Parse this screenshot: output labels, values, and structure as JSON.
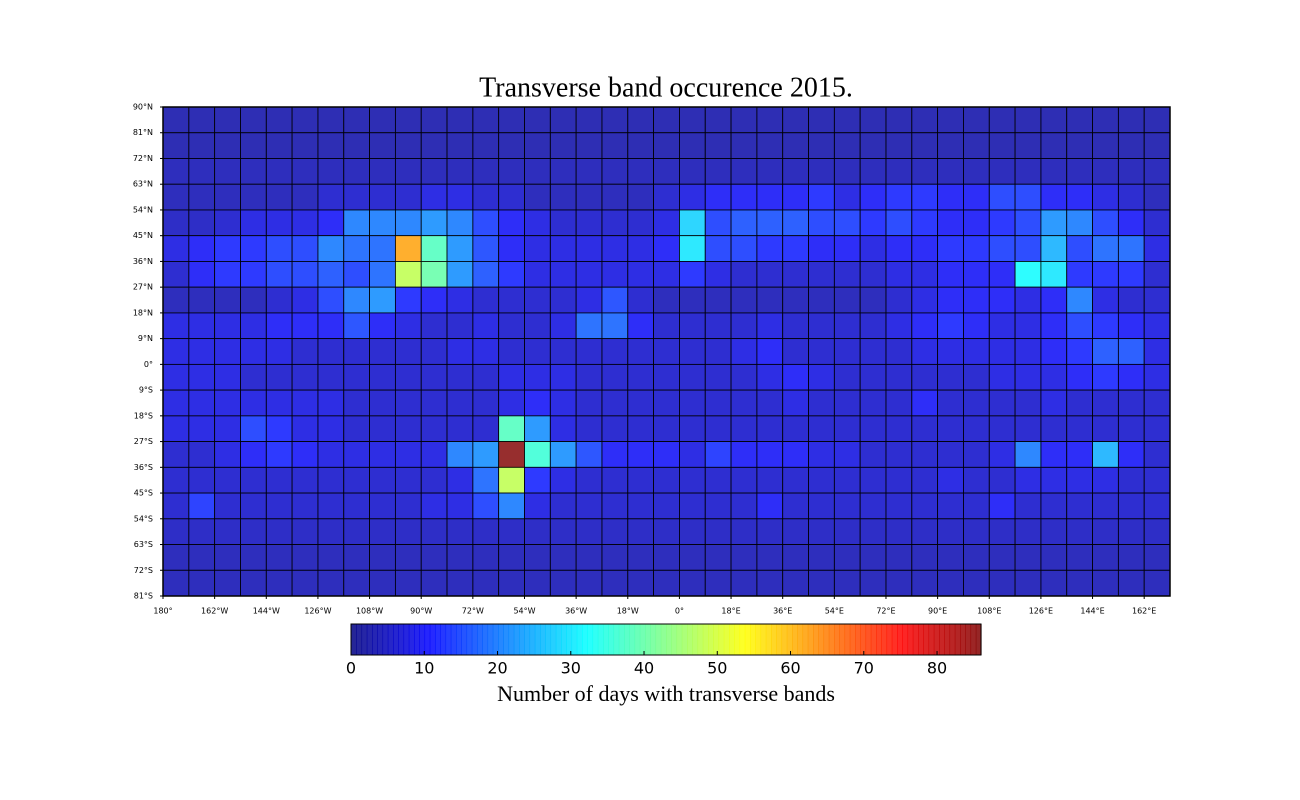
{
  "chart_data": {
    "type": "heatmap",
    "title": "Transverse band occurence 2015.",
    "colormap": "jet",
    "grid": true,
    "xlim": [
      -180,
      171
    ],
    "ylim": [
      -81,
      90
    ],
    "xticks": [
      {
        "value": -180,
        "label": "180°"
      },
      {
        "value": -162,
        "label": "162°W"
      },
      {
        "value": -144,
        "label": "144°W"
      },
      {
        "value": -126,
        "label": "126°W"
      },
      {
        "value": -108,
        "label": "108°W"
      },
      {
        "value": -90,
        "label": "90°W"
      },
      {
        "value": -72,
        "label": "72°W"
      },
      {
        "value": -54,
        "label": "54°W"
      },
      {
        "value": -36,
        "label": "36°W"
      },
      {
        "value": -18,
        "label": "18°W"
      },
      {
        "value": 0,
        "label": "0°"
      },
      {
        "value": 18,
        "label": "18°E"
      },
      {
        "value": 36,
        "label": "36°E"
      },
      {
        "value": 54,
        "label": "54°E"
      },
      {
        "value": 72,
        "label": "72°E"
      },
      {
        "value": 90,
        "label": "90°E"
      },
      {
        "value": 108,
        "label": "108°E"
      },
      {
        "value": 126,
        "label": "126°E"
      },
      {
        "value": 144,
        "label": "144°E"
      },
      {
        "value": 162,
        "label": "162°E"
      }
    ],
    "yticks": [
      {
        "value": 90,
        "label": "90°N"
      },
      {
        "value": 81,
        "label": "81°N"
      },
      {
        "value": 72,
        "label": "72°N"
      },
      {
        "value": 63,
        "label": "63°N"
      },
      {
        "value": 54,
        "label": "54°N"
      },
      {
        "value": 45,
        "label": "45°N"
      },
      {
        "value": 36,
        "label": "36°N"
      },
      {
        "value": 27,
        "label": "27°N"
      },
      {
        "value": 18,
        "label": "18°N"
      },
      {
        "value": 9,
        "label": "9°N"
      },
      {
        "value": 0,
        "label": "0°"
      },
      {
        "value": -9,
        "label": "9°S"
      },
      {
        "value": -18,
        "label": "18°S"
      },
      {
        "value": -27,
        "label": "27°S"
      },
      {
        "value": -36,
        "label": "36°S"
      },
      {
        "value": -45,
        "label": "45°S"
      },
      {
        "value": -54,
        "label": "54°S"
      },
      {
        "value": -63,
        "label": "63°S"
      },
      {
        "value": -72,
        "label": "72°S"
      },
      {
        "value": -81,
        "label": "81°S"
      }
    ],
    "colorbar": {
      "label": "Number of days with transverse bands",
      "clim": [
        0,
        86
      ],
      "ticks": [
        0,
        10,
        20,
        30,
        40,
        50,
        60,
        70,
        80
      ]
    },
    "values": [
      [
        3,
        3,
        3,
        3,
        3,
        3,
        3,
        3,
        3,
        3,
        3,
        3,
        3,
        3,
        3,
        3,
        3,
        3,
        3,
        3,
        3,
        3,
        3,
        3,
        3,
        3,
        3,
        3,
        3,
        3,
        3,
        3,
        3,
        3,
        3,
        3,
        3,
        3,
        3
      ],
      [
        3,
        3,
        3,
        3,
        3,
        3,
        3,
        3,
        3,
        3,
        3,
        3,
        3,
        3,
        3,
        3,
        3,
        3,
        3,
        3,
        3,
        3,
        3,
        3,
        3,
        3,
        3,
        3,
        3,
        3,
        3,
        3,
        3,
        3,
        3,
        3,
        3,
        3,
        3
      ],
      [
        4,
        4,
        4,
        4,
        4,
        4,
        4,
        4,
        4,
        4,
        4,
        4,
        4,
        4,
        4,
        4,
        4,
        4,
        4,
        4,
        4,
        4,
        4,
        4,
        4,
        4,
        4,
        4,
        4,
        4,
        4,
        4,
        4,
        4,
        4,
        4,
        4,
        4,
        4
      ],
      [
        4,
        4,
        4,
        4,
        4,
        4,
        6,
        6,
        6,
        6,
        8,
        8,
        6,
        6,
        4,
        4,
        4,
        4,
        4,
        6,
        8,
        10,
        10,
        10,
        10,
        12,
        8,
        10,
        12,
        12,
        10,
        10,
        14,
        14,
        10,
        10,
        8,
        6,
        4
      ],
      [
        5,
        5,
        6,
        8,
        8,
        8,
        10,
        20,
        20,
        20,
        22,
        20,
        14,
        10,
        8,
        6,
        6,
        6,
        6,
        8,
        28,
        14,
        16,
        16,
        16,
        14,
        14,
        12,
        14,
        12,
        10,
        10,
        12,
        14,
        22,
        20,
        14,
        10,
        6
      ],
      [
        8,
        10,
        12,
        12,
        14,
        14,
        20,
        18,
        18,
        62,
        38,
        22,
        15,
        10,
        8,
        8,
        8,
        8,
        8,
        10,
        30,
        14,
        14,
        12,
        12,
        10,
        10,
        8,
        10,
        10,
        12,
        12,
        14,
        14,
        25,
        14,
        18,
        18,
        8
      ],
      [
        6,
        10,
        12,
        12,
        14,
        14,
        16,
        14,
        18,
        48,
        40,
        22,
        16,
        12,
        8,
        8,
        8,
        8,
        8,
        8,
        12,
        8,
        6,
        6,
        6,
        6,
        6,
        6,
        8,
        8,
        10,
        10,
        10,
        32,
        30,
        12,
        12,
        12,
        6
      ],
      [
        4,
        4,
        4,
        4,
        6,
        8,
        14,
        20,
        22,
        12,
        10,
        8,
        6,
        6,
        6,
        6,
        8,
        15,
        6,
        4,
        4,
        4,
        4,
        4,
        4,
        4,
        4,
        4,
        6,
        8,
        10,
        10,
        10,
        8,
        10,
        20,
        8,
        6,
        6
      ],
      [
        8,
        8,
        8,
        8,
        10,
        10,
        10,
        15,
        10,
        8,
        6,
        6,
        8,
        6,
        6,
        8,
        18,
        18,
        10,
        6,
        6,
        6,
        6,
        8,
        6,
        6,
        6,
        6,
        8,
        10,
        12,
        10,
        8,
        8,
        10,
        14,
        12,
        10,
        8
      ],
      [
        8,
        8,
        8,
        8,
        8,
        6,
        6,
        6,
        6,
        6,
        6,
        8,
        8,
        6,
        6,
        6,
        6,
        6,
        6,
        6,
        6,
        6,
        8,
        10,
        6,
        6,
        6,
        6,
        6,
        8,
        8,
        8,
        8,
        8,
        10,
        12,
        16,
        16,
        8
      ],
      [
        8,
        8,
        8,
        6,
        6,
        6,
        6,
        6,
        6,
        6,
        6,
        6,
        6,
        8,
        8,
        8,
        6,
        6,
        6,
        6,
        6,
        6,
        6,
        8,
        10,
        8,
        6,
        6,
        6,
        6,
        6,
        6,
        8,
        8,
        8,
        10,
        12,
        10,
        8
      ],
      [
        8,
        8,
        8,
        8,
        8,
        8,
        8,
        6,
        6,
        6,
        6,
        6,
        6,
        8,
        10,
        8,
        6,
        6,
        6,
        6,
        6,
        6,
        6,
        6,
        8,
        6,
        6,
        6,
        6,
        10,
        6,
        6,
        6,
        6,
        8,
        6,
        6,
        6,
        6
      ],
      [
        8,
        8,
        8,
        14,
        12,
        8,
        8,
        6,
        6,
        6,
        6,
        6,
        6,
        38,
        22,
        8,
        6,
        6,
        6,
        6,
        6,
        6,
        6,
        6,
        6,
        6,
        6,
        6,
        6,
        6,
        6,
        6,
        6,
        6,
        6,
        6,
        6,
        6,
        6
      ],
      [
        6,
        6,
        8,
        10,
        12,
        10,
        8,
        8,
        8,
        8,
        8,
        20,
        22,
        86,
        36,
        22,
        15,
        10,
        10,
        10,
        8,
        13,
        10,
        10,
        10,
        8,
        8,
        6,
        6,
        6,
        6,
        6,
        8,
        20,
        10,
        10,
        25,
        10,
        6
      ],
      [
        6,
        6,
        6,
        6,
        6,
        6,
        6,
        6,
        6,
        6,
        6,
        8,
        18,
        48,
        12,
        8,
        6,
        6,
        6,
        6,
        6,
        6,
        6,
        6,
        6,
        6,
        6,
        6,
        6,
        6,
        8,
        6,
        6,
        8,
        8,
        8,
        8,
        6,
        6
      ],
      [
        6,
        13,
        6,
        6,
        6,
        6,
        6,
        6,
        6,
        6,
        8,
        8,
        14,
        20,
        8,
        6,
        6,
        6,
        6,
        6,
        6,
        6,
        6,
        10,
        6,
        6,
        6,
        6,
        6,
        6,
        6,
        6,
        10,
        6,
        6,
        6,
        6,
        6,
        6
      ],
      [
        5,
        5,
        5,
        5,
        5,
        5,
        5,
        5,
        5,
        5,
        5,
        5,
        5,
        5,
        5,
        5,
        5,
        5,
        5,
        5,
        5,
        5,
        5,
        5,
        5,
        5,
        5,
        5,
        5,
        5,
        5,
        5,
        5,
        5,
        5,
        5,
        5,
        5,
        5
      ],
      [
        4,
        4,
        4,
        4,
        4,
        4,
        4,
        4,
        4,
        4,
        4,
        4,
        4,
        4,
        4,
        4,
        4,
        4,
        4,
        4,
        4,
        4,
        4,
        4,
        4,
        4,
        4,
        4,
        4,
        4,
        4,
        4,
        4,
        4,
        4,
        4,
        4,
        4,
        4
      ],
      [
        4,
        4,
        4,
        4,
        4,
        4,
        4,
        4,
        4,
        4,
        4,
        4,
        4,
        4,
        4,
        4,
        4,
        4,
        4,
        4,
        4,
        4,
        4,
        4,
        4,
        4,
        4,
        4,
        4,
        4,
        4,
        4,
        4,
        4,
        4,
        4,
        4,
        4,
        4
      ]
    ]
  }
}
